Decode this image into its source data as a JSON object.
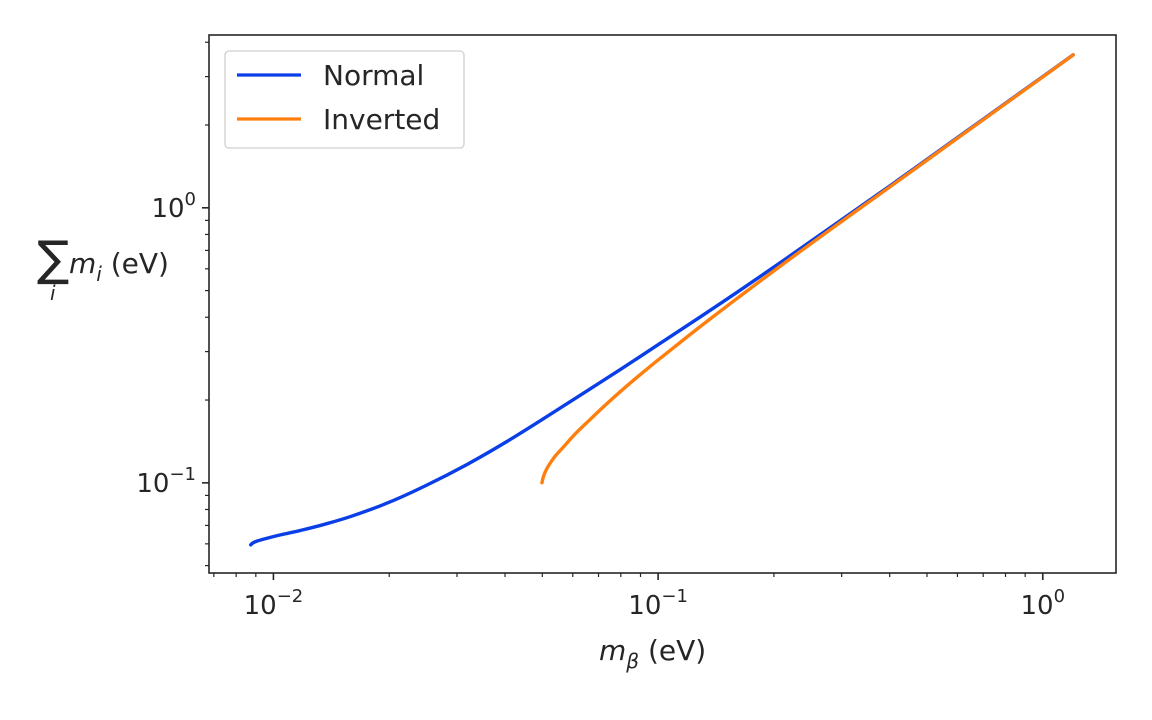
{
  "chart_data": {
    "type": "line",
    "title": "",
    "xlabel": "m_β (eV)",
    "ylabel": "∑_i m_i (eV)",
    "xscale": "log",
    "yscale": "log",
    "xlim": [
      0.0068,
      1.55
    ],
    "ylim": [
      0.047,
      4.25
    ],
    "grid": false,
    "legend_position": "top-left",
    "x_ticks": [
      {
        "value": 0.01,
        "label": "10",
        "exp": "−2"
      },
      {
        "value": 0.1,
        "label": "10",
        "exp": "−1"
      },
      {
        "value": 1.0,
        "label": "10",
        "exp": "0"
      }
    ],
    "y_ticks": [
      {
        "value": 0.1,
        "label": "10",
        "exp": "−1"
      },
      {
        "value": 1.0,
        "label": "10",
        "exp": "0"
      }
    ],
    "series": [
      {
        "name": "Normal",
        "color": "#0a3fe8",
        "x": [
          0.00873,
          0.00885,
          0.0091,
          0.0096,
          0.0105,
          0.0118,
          0.0135,
          0.016,
          0.02,
          0.025,
          0.032,
          0.04,
          0.05,
          0.063,
          0.08,
          0.1,
          0.13,
          0.16,
          0.2,
          0.25,
          0.32,
          0.4,
          0.5,
          0.63,
          0.8,
          1.0,
          1.2
        ],
        "y": [
          0.0595,
          0.0605,
          0.0615,
          0.0628,
          0.0648,
          0.0672,
          0.0705,
          0.0757,
          0.085,
          0.098,
          0.117,
          0.14,
          0.17,
          0.209,
          0.259,
          0.318,
          0.405,
          0.492,
          0.609,
          0.757,
          0.964,
          1.2,
          1.5,
          1.89,
          2.4,
          3.0,
          3.6
        ]
      },
      {
        "name": "Inverted",
        "color": "#ff7f0e",
        "x": [
          0.0499,
          0.0502,
          0.0508,
          0.052,
          0.054,
          0.057,
          0.061,
          0.066,
          0.073,
          0.082,
          0.095,
          0.11,
          0.13,
          0.16,
          0.2,
          0.25,
          0.32,
          0.4,
          0.5,
          0.63,
          0.8,
          1.0,
          1.2
        ],
        "y": [
          0.1,
          0.104,
          0.109,
          0.116,
          0.125,
          0.136,
          0.151,
          0.168,
          0.192,
          0.222,
          0.264,
          0.311,
          0.374,
          0.467,
          0.59,
          0.742,
          0.952,
          1.19,
          1.49,
          1.88,
          2.39,
          2.99,
          3.6
        ]
      }
    ]
  }
}
